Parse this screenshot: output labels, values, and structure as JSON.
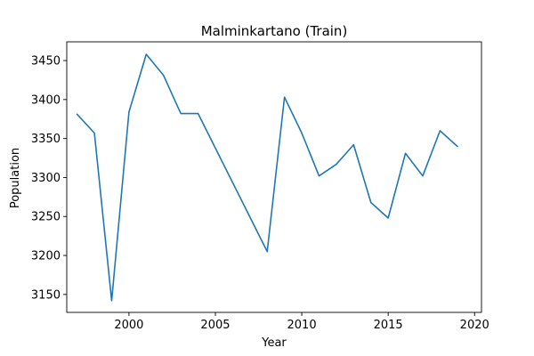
{
  "chart_data": {
    "type": "line",
    "title": "Malminkartano (Train)",
    "xlabel": "Year",
    "ylabel": "Population",
    "xlim": [
      1996.4,
      2020.4
    ],
    "ylim": [
      3127,
      3474
    ],
    "xticks": [
      2000,
      2005,
      2010,
      2015,
      2020
    ],
    "yticks": [
      3150,
      3200,
      3250,
      3300,
      3350,
      3400,
      3450
    ],
    "grid": false,
    "legend": "none",
    "series": [
      {
        "color": "#1f77b4",
        "x": [
          1997,
          1998,
          1999,
          2000,
          2001,
          2002,
          2003,
          2004,
          2008,
          2009,
          2010,
          2011,
          2012,
          2013,
          2014,
          2015,
          2016,
          2017,
          2018,
          2019
        ],
        "y": [
          3381,
          3357,
          3142,
          3384,
          3458,
          3431,
          3382,
          3382,
          3205,
          3403,
          3357,
          3302,
          3317,
          3342,
          3268,
          3248,
          3331,
          3302,
          3360,
          3340
        ]
      }
    ]
  }
}
